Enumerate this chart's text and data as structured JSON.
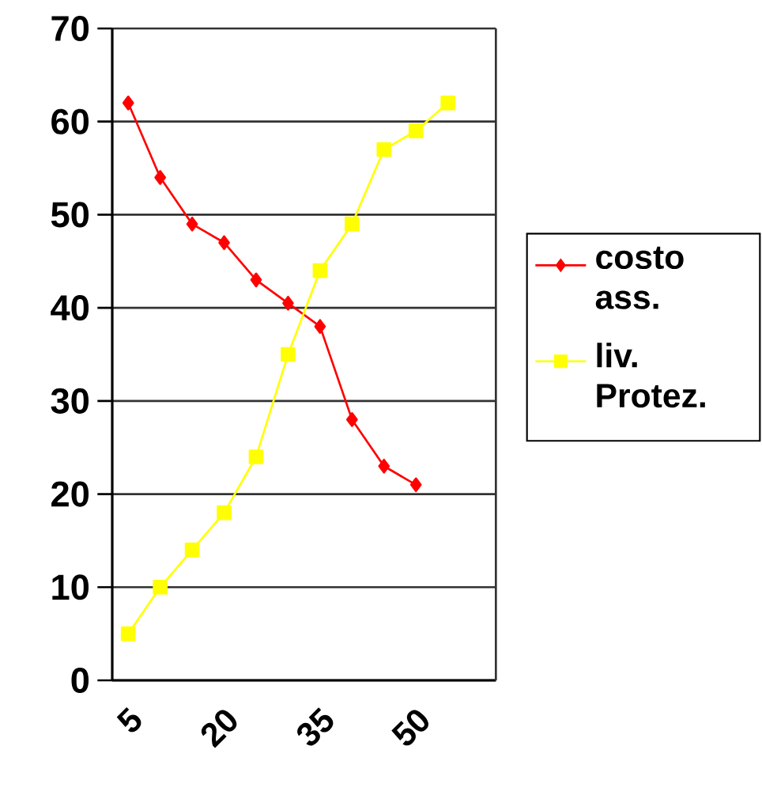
{
  "chart_data": {
    "type": "line",
    "categories": [
      "5",
      null,
      null,
      "20",
      null,
      null,
      "35",
      null,
      null,
      "50",
      null,
      null
    ],
    "series": [
      {
        "name": "costo ass.",
        "color": "#ff0000",
        "marker": "diamond",
        "values": [
          62,
          54,
          49,
          47,
          43,
          40.5,
          38,
          28,
          23,
          21,
          null,
          null
        ]
      },
      {
        "name": "liv. Protez.",
        "color": "#ffff00",
        "marker": "square",
        "values": [
          5,
          10,
          14,
          18,
          24,
          35,
          44,
          49,
          57,
          59,
          62,
          null
        ]
      }
    ],
    "ylim": [
      0,
      70
    ],
    "yticks": [
      0,
      10,
      20,
      30,
      40,
      50,
      60,
      70
    ],
    "grid": "y",
    "legend": "right",
    "line_style": "solid"
  }
}
